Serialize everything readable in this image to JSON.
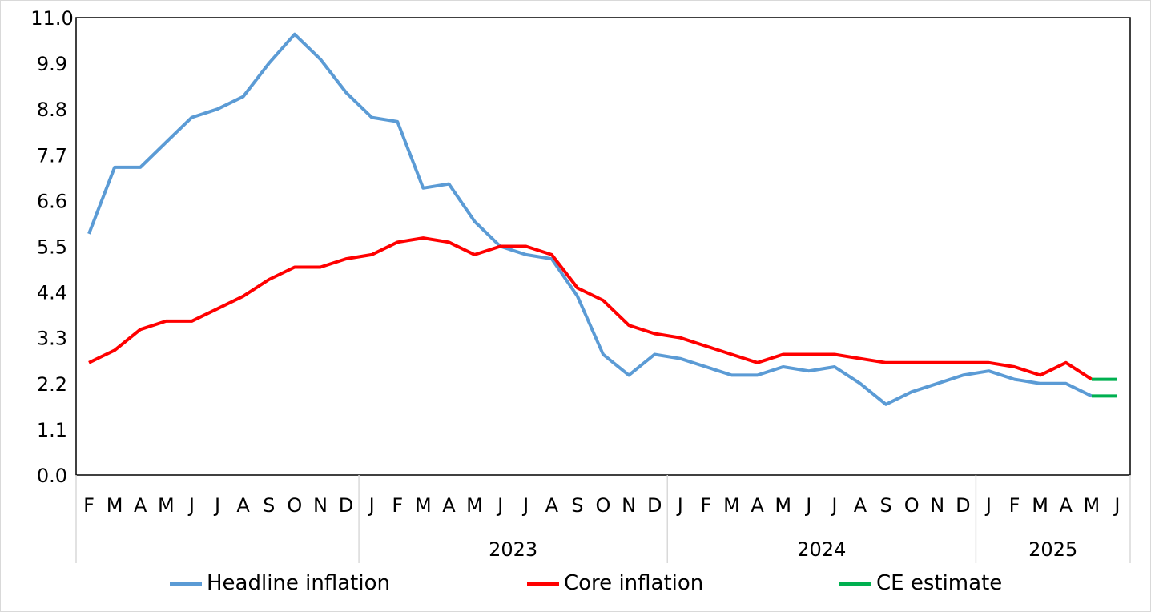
{
  "chart_data": {
    "type": "line",
    "title": "",
    "xlabel": "",
    "ylabel": "",
    "ylim": [
      0,
      11
    ],
    "y_ticks": [
      "0.0",
      "1.1",
      "2.2",
      "3.3",
      "4.4",
      "5.5",
      "6.6",
      "7.7",
      "8.8",
      "9.9",
      "11.0"
    ],
    "categories": [
      "F",
      "M",
      "A",
      "M",
      "J",
      "J",
      "A",
      "S",
      "O",
      "N",
      "D",
      "J",
      "F",
      "M",
      "A",
      "M",
      "J",
      "J",
      "A",
      "S",
      "O",
      "N",
      "D",
      "J",
      "F",
      "M",
      "A",
      "M",
      "J",
      "J",
      "A",
      "S",
      "O",
      "N",
      "D",
      "J",
      "F",
      "M",
      "A",
      "M",
      "J"
    ],
    "year_groups": [
      {
        "label": "",
        "start": 0,
        "end": 10
      },
      {
        "label": "2023",
        "start": 11,
        "end": 22
      },
      {
        "label": "2024",
        "start": 23,
        "end": 34
      },
      {
        "label": "2025",
        "start": 35,
        "end": 40
      }
    ],
    "series": [
      {
        "name": "Headline inflation",
        "color": "#5b9bd5",
        "values": [
          5.8,
          7.4,
          7.4,
          8.0,
          8.6,
          8.8,
          9.1,
          9.9,
          10.6,
          10.0,
          9.2,
          8.6,
          8.5,
          6.9,
          7.0,
          6.1,
          5.5,
          5.3,
          5.2,
          4.3,
          2.9,
          2.4,
          2.9,
          2.8,
          2.6,
          2.4,
          2.4,
          2.6,
          2.5,
          2.6,
          2.2,
          1.7,
          2.0,
          2.2,
          2.4,
          2.5,
          2.3,
          2.2,
          2.2,
          1.9,
          null
        ]
      },
      {
        "name": "Core inflation",
        "color": "#ff0000",
        "values": [
          2.7,
          3.0,
          3.5,
          3.7,
          3.7,
          4.0,
          4.3,
          4.7,
          5.0,
          5.0,
          5.2,
          5.3,
          5.6,
          5.7,
          5.6,
          5.3,
          5.5,
          5.5,
          5.3,
          4.5,
          4.2,
          3.6,
          3.4,
          3.3,
          3.1,
          2.9,
          2.7,
          2.9,
          2.9,
          2.9,
          2.8,
          2.7,
          2.7,
          2.7,
          2.7,
          2.7,
          2.6,
          2.4,
          2.7,
          2.3,
          null
        ]
      },
      {
        "name": "CE estimate",
        "color": "#00b050",
        "values": [
          null,
          null,
          null,
          null,
          null,
          null,
          null,
          null,
          null,
          null,
          null,
          null,
          null,
          null,
          null,
          null,
          null,
          null,
          null,
          null,
          null,
          null,
          null,
          null,
          null,
          null,
          null,
          null,
          null,
          null,
          null,
          null,
          null,
          null,
          null,
          null,
          null,
          null,
          null,
          2.3,
          2.3
        ],
        "values_headline": [
          null,
          null,
          null,
          null,
          null,
          null,
          null,
          null,
          null,
          null,
          null,
          null,
          null,
          null,
          null,
          null,
          null,
          null,
          null,
          null,
          null,
          null,
          null,
          null,
          null,
          null,
          null,
          null,
          null,
          null,
          null,
          null,
          null,
          null,
          null,
          null,
          null,
          null,
          null,
          1.9,
          1.9
        ]
      }
    ],
    "legend": {
      "placement": "bottom"
    },
    "grid": false
  }
}
